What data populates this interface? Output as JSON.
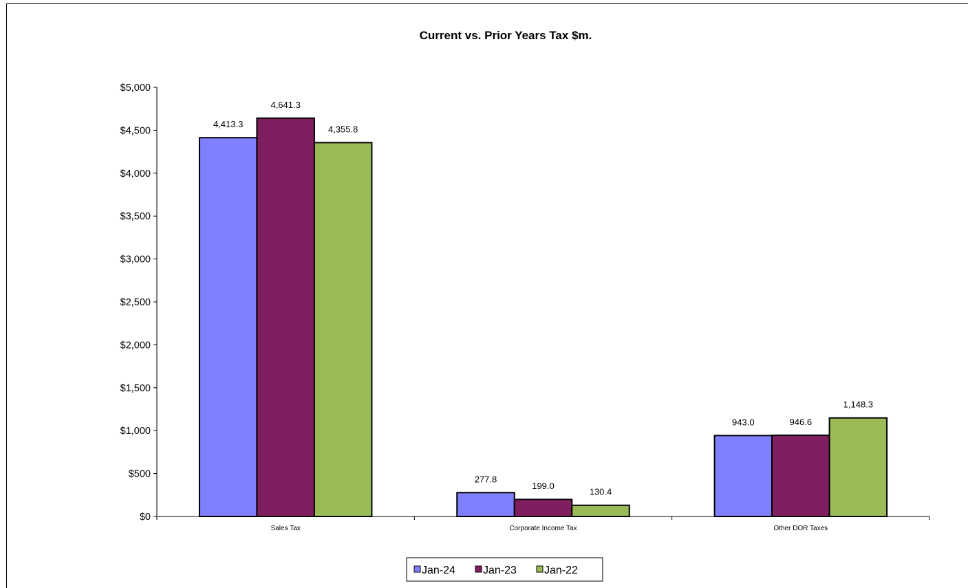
{
  "chart_data": {
    "type": "bar",
    "title": "Current vs. Prior Years Tax $m.",
    "categories": [
      "Sales Tax",
      "Corporate Income Tax",
      "Other DOR Taxes"
    ],
    "series": [
      {
        "name": "Jan-24",
        "color": "#8080FF",
        "values": [
          4413.3,
          277.8,
          943.0
        ],
        "labels": [
          "4,413.3",
          "277.8",
          "943.0"
        ]
      },
      {
        "name": "Jan-23",
        "color": "#7F1F5F",
        "values": [
          4641.3,
          199.0,
          946.6
        ],
        "labels": [
          "4,641.3",
          "199.0",
          "946.6"
        ]
      },
      {
        "name": "Jan-22",
        "color": "#9BBB59",
        "values": [
          4355.8,
          130.4,
          1148.3
        ],
        "labels": [
          "4,355.8",
          "130.4",
          "1,148.3"
        ]
      }
    ],
    "ylim": [
      0,
      5000
    ],
    "ytick_labels": [
      "$0",
      "$500",
      "$1,000",
      "$1,500",
      "$2,000",
      "$2,500",
      "$3,000",
      "$3,500",
      "$4,000",
      "$4,500",
      "$5,000"
    ],
    "xlabel": "",
    "ylabel": "",
    "grid": false,
    "legend_position": "bottom"
  }
}
